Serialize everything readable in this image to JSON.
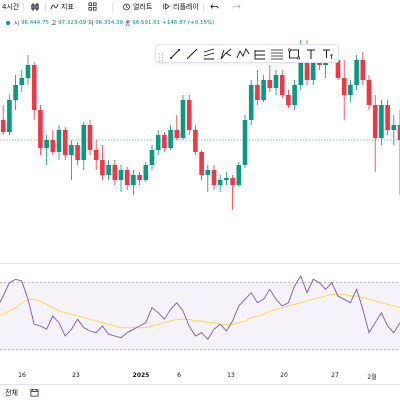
{
  "toolbar": {
    "timeframe": "4시간",
    "indicators_label": "지표",
    "alert_label": "얼러트",
    "replay_label": "리플레이"
  },
  "ohlc": {
    "open_label": "시",
    "open": "96,444.75",
    "high_label": "고",
    "high": "97,323.09",
    "low_label": "저",
    "low": "96,314.30",
    "close_label": "종",
    "close": "96,591.61",
    "change": "+146.87 (+0.15%)"
  },
  "colors": {
    "up": "#089981",
    "down": "#f23645",
    "rsi_line": "#7e57c2",
    "rsi_ma": "#fdd835",
    "rsi_band": "#7e57c2"
  },
  "drawing_tools": [
    "drag-handle-icon",
    "line-tool-icon",
    "ray-tool-icon",
    "parallel-channel-icon",
    "pitchfork-icon",
    "zigzag-pattern-icon",
    "long-position-icon",
    "fib-retracement-icon",
    "rectangle-tool-icon",
    "text-tool-icon",
    "anchored-text-icon"
  ],
  "chart_data": {
    "type": "candlestick",
    "x_ticks": [
      "16",
      "23",
      "2025",
      "6",
      "13",
      "20",
      "27",
      "2월"
    ],
    "candles": [
      [
        96.0,
        98.0,
        94.8,
        97.0
      ],
      [
        97.0,
        98.5,
        95.5,
        95.8
      ],
      [
        95.8,
        99.5,
        95.5,
        99.0
      ],
      [
        99.0,
        101.5,
        98.0,
        100.5
      ],
      [
        100.5,
        102.0,
        99.8,
        101.2
      ],
      [
        101.2,
        103.5,
        100.5,
        102.5
      ],
      [
        102.5,
        102.8,
        97.0,
        98.0
      ],
      [
        98.0,
        98.5,
        93.5,
        94.2
      ],
      [
        94.2,
        95.5,
        92.5,
        95.0
      ],
      [
        95.0,
        96.0,
        93.5,
        93.8
      ],
      [
        93.8,
        96.5,
        93.0,
        96.0
      ],
      [
        96.0,
        96.3,
        93.0,
        93.5
      ],
      [
        93.5,
        95.0,
        91.0,
        94.5
      ],
      [
        94.5,
        94.8,
        92.5,
        93.0
      ],
      [
        93.0,
        96.8,
        92.0,
        96.5
      ],
      [
        96.5,
        97.0,
        93.5,
        94.0
      ],
      [
        94.0,
        95.0,
        92.0,
        93.0
      ],
      [
        93.0,
        94.5,
        91.0,
        91.5
      ],
      [
        91.5,
        93.0,
        91.0,
        92.5
      ],
      [
        92.5,
        93.0,
        90.5,
        91.0
      ],
      [
        91.0,
        92.5,
        89.8,
        92.0
      ],
      [
        92.0,
        92.3,
        90.0,
        90.5
      ],
      [
        90.5,
        92.0,
        89.5,
        91.5
      ],
      [
        91.5,
        91.8,
        90.5,
        91.0
      ],
      [
        91.0,
        92.8,
        90.8,
        92.5
      ],
      [
        92.5,
        94.5,
        92.0,
        94.0
      ],
      [
        94.0,
        96.0,
        93.5,
        95.5
      ],
      [
        95.5,
        95.8,
        93.8,
        94.2
      ],
      [
        94.2,
        96.5,
        94.0,
        96.0
      ],
      [
        96.0,
        97.5,
        95.0,
        95.2
      ],
      [
        95.2,
        99.5,
        95.0,
        99.0
      ],
      [
        99.0,
        99.5,
        95.5,
        96.0
      ],
      [
        96.0,
        96.5,
        93.5,
        93.8
      ],
      [
        93.8,
        94.0,
        91.0,
        91.5
      ],
      [
        91.5,
        92.5,
        89.8,
        92.0
      ],
      [
        92.0,
        92.5,
        90.0,
        90.5
      ],
      [
        90.5,
        91.5,
        89.8,
        91.0
      ],
      [
        91.0,
        91.8,
        90.5,
        91.2
      ],
      [
        91.2,
        91.5,
        88.0,
        90.5
      ],
      [
        90.5,
        92.8,
        90.3,
        92.5
      ],
      [
        92.5,
        97.5,
        92.2,
        97.0
      ],
      [
        97.0,
        101.0,
        96.5,
        100.5
      ],
      [
        100.5,
        102.0,
        98.5,
        99.0
      ],
      [
        99.0,
        101.5,
        98.8,
        101.0
      ],
      [
        101.0,
        102.5,
        99.8,
        100.2
      ],
      [
        100.2,
        102.0,
        99.5,
        101.5
      ],
      [
        101.5,
        102.0,
        99.2,
        99.5
      ],
      [
        99.5,
        100.0,
        98.2,
        98.5
      ],
      [
        98.5,
        101.0,
        98.0,
        100.5
      ],
      [
        100.5,
        105.0,
        100.0,
        104.5
      ],
      [
        104.5,
        105.0,
        100.5,
        101.0
      ],
      [
        101.0,
        104.0,
        100.5,
        103.5
      ],
      [
        103.5,
        104.5,
        102.0,
        102.5
      ],
      [
        102.5,
        104.0,
        101.2,
        103.5
      ],
      [
        103.5,
        104.5,
        102.8,
        103.0
      ],
      [
        103.0,
        103.5,
        101.0,
        101.2
      ],
      [
        101.2,
        103.0,
        97.0,
        99.5
      ],
      [
        99.5,
        101.0,
        98.8,
        100.5
      ],
      [
        100.5,
        103.5,
        100.0,
        103.0
      ],
      [
        103.0,
        103.8,
        100.5,
        101.0
      ],
      [
        101.0,
        101.5,
        98.0,
        98.5
      ],
      [
        98.5,
        99.5,
        91.8,
        95.2
      ],
      [
        95.2,
        99.0,
        94.5,
        98.5
      ],
      [
        98.5,
        99.0,
        95.5,
        96.0
      ],
      [
        96.0,
        97.5,
        94.5,
        96.5
      ],
      [
        96.5,
        98.0,
        89.5,
        95.0
      ]
    ],
    "rsi": [
      55,
      62,
      70,
      72,
      71,
      60,
      45,
      44,
      42,
      50,
      46,
      38,
      42,
      48,
      43,
      41,
      40,
      44,
      39,
      38,
      37,
      40,
      42,
      44,
      46,
      55,
      52,
      48,
      54,
      58,
      53,
      44,
      38,
      40,
      36,
      42,
      45,
      41,
      47,
      56,
      60,
      64,
      58,
      60,
      66,
      60,
      56,
      58,
      68,
      74,
      64,
      72,
      70,
      66,
      70,
      62,
      60,
      58,
      66,
      54,
      40,
      46,
      52,
      44,
      40,
      46
    ],
    "rsi_ma": [
      50,
      51,
      53,
      55,
      58,
      60,
      60,
      59,
      57,
      55,
      53,
      52,
      51,
      50,
      49,
      48,
      47,
      46,
      45,
      44,
      43,
      43,
      43,
      43,
      43,
      44,
      45,
      46,
      47,
      48,
      48,
      48,
      47,
      47,
      46,
      46,
      45,
      45,
      45,
      46,
      47,
      49,
      50,
      51,
      53,
      54,
      55,
      56,
      57,
      58,
      59,
      60,
      61,
      62,
      63,
      63,
      63,
      62,
      62,
      61,
      60,
      59,
      58,
      57,
      56,
      55
    ],
    "rsi_bands": [
      70,
      30
    ]
  },
  "bottom": {
    "range_label": "전체"
  }
}
